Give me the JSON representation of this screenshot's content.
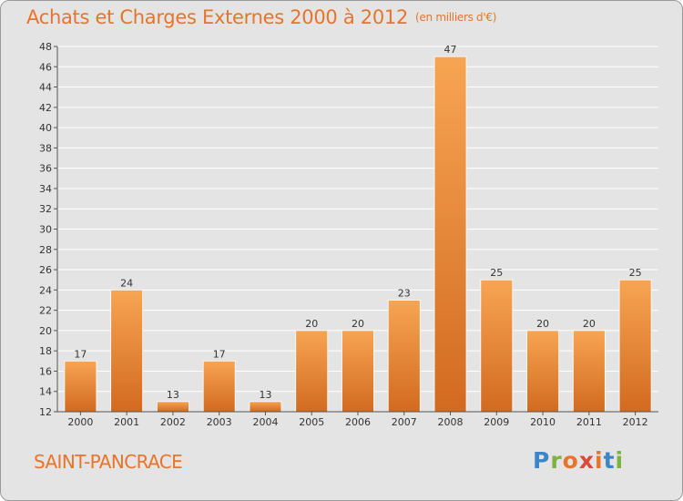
{
  "title": "Achats et Charges Externes 2000 à 2012",
  "unit": "(en milliers d'€)",
  "town": "SAINT-PANCRACE",
  "logo": [
    "P",
    "r",
    "o",
    "x",
    "i",
    "t",
    "i"
  ],
  "logo_colors": [
    "#3a86c8",
    "#7cb342",
    "#e8742a",
    "#d84b3a",
    "#e8742a",
    "#3a86c8",
    "#7cb342"
  ],
  "colors": {
    "bar": "#f0913d",
    "bar_dark": "#d0661a",
    "text": "#e8742a",
    "axis": "#555555"
  },
  "chart_data": {
    "type": "bar",
    "categories": [
      "2000",
      "2001",
      "2002",
      "2003",
      "2004",
      "2005",
      "2006",
      "2007",
      "2008",
      "2009",
      "2010",
      "2011",
      "2012"
    ],
    "values": [
      17,
      24,
      13,
      17,
      13,
      20,
      20,
      23,
      47,
      25,
      20,
      20,
      25
    ],
    "ylim": [
      12,
      48
    ],
    "yticks": [
      12,
      14,
      16,
      18,
      20,
      22,
      24,
      26,
      28,
      30,
      32,
      34,
      36,
      38,
      40,
      42,
      44,
      46,
      48
    ],
    "grid": true
  }
}
